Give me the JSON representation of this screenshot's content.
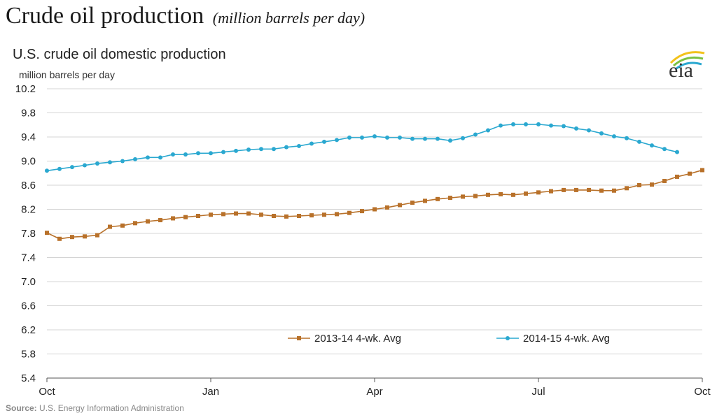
{
  "headline": {
    "title": "Crude oil production",
    "subtitle": "(million barrels per day)"
  },
  "logo_text": "eia",
  "source": {
    "label": "Source:",
    "text": "U.S. Energy Information Administration"
  },
  "colors": {
    "series_2013": "#b8712a",
    "series_2014": "#2aa8d0",
    "grid": "#d4d4d4",
    "axis": "#555555"
  },
  "chart_data": {
    "type": "line",
    "title": "U.S. crude oil domestic production",
    "ylabel": "million barrels per day",
    "ylim": [
      5.4,
      10.2
    ],
    "yticks": [
      "10.2",
      "9.8",
      "9.4",
      "9.0",
      "8.6",
      "8.2",
      "7.8",
      "7.4",
      "7.0",
      "6.6",
      "6.2",
      "5.8",
      "5.4"
    ],
    "xlim": [
      0,
      52
    ],
    "xticks": [
      {
        "week": 0,
        "label": "Oct"
      },
      {
        "week": 13,
        "label": "Jan"
      },
      {
        "week": 26,
        "label": "Apr"
      },
      {
        "week": 39,
        "label": "Jul"
      },
      {
        "week": 52,
        "label": "Oct"
      }
    ],
    "legend_position": "bottom-center",
    "series": [
      {
        "name": "2013-14  4-wk. Avg",
        "color_key": "series_2013",
        "marker": "square",
        "values": [
          7.81,
          7.71,
          7.74,
          7.75,
          7.77,
          7.91,
          7.93,
          7.97,
          8.0,
          8.02,
          8.05,
          8.07,
          8.09,
          8.11,
          8.12,
          8.13,
          8.13,
          8.11,
          8.09,
          8.08,
          8.09,
          8.1,
          8.11,
          8.12,
          8.14,
          8.17,
          8.2,
          8.23,
          8.27,
          8.31,
          8.34,
          8.37,
          8.39,
          8.41,
          8.42,
          8.44,
          8.45,
          8.44,
          8.46,
          8.48,
          8.5,
          8.52,
          8.52,
          8.52,
          8.51,
          8.51,
          8.55,
          8.6,
          8.61,
          8.67,
          8.74,
          8.79,
          8.85
        ]
      },
      {
        "name": "2014-15  4-wk. Avg",
        "color_key": "series_2014",
        "marker": "circle",
        "values": [
          8.84,
          8.87,
          8.9,
          8.93,
          8.96,
          8.98,
          9.0,
          9.03,
          9.06,
          9.06,
          9.11,
          9.11,
          9.13,
          9.13,
          9.15,
          9.17,
          9.19,
          9.2,
          9.2,
          9.23,
          9.25,
          9.29,
          9.32,
          9.35,
          9.39,
          9.39,
          9.41,
          9.39,
          9.39,
          9.37,
          9.37,
          9.37,
          9.34,
          9.38,
          9.44,
          9.51,
          9.59,
          9.61,
          9.61,
          9.61,
          9.59,
          9.58,
          9.54,
          9.51,
          9.46,
          9.41,
          9.38,
          9.32,
          9.26,
          9.2,
          9.15
        ]
      }
    ]
  }
}
